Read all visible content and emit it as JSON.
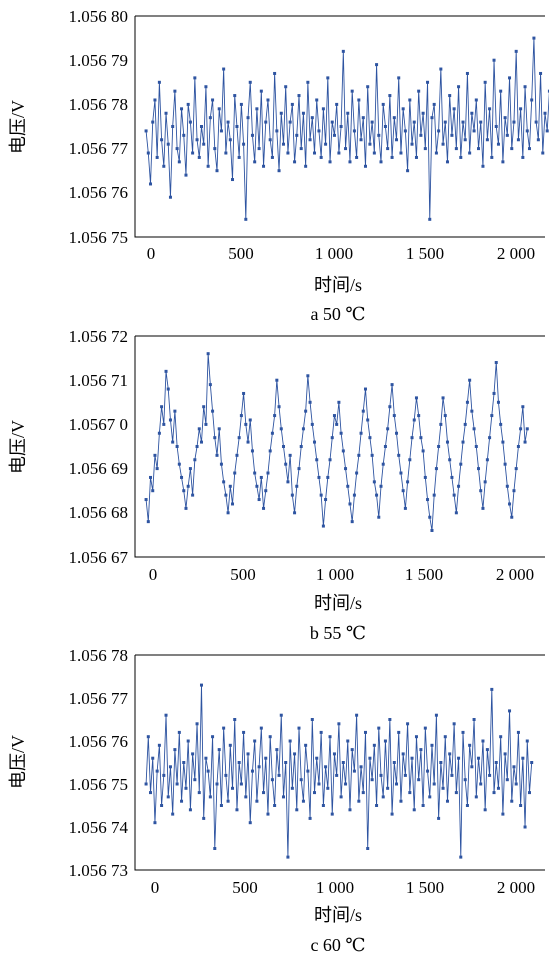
{
  "chart_data": [
    {
      "type": "line",
      "ylabel": "电压/V",
      "xlabel": "时间/s",
      "caption": "a 50 ℃",
      "xlim": [
        -60,
        2160
      ],
      "xticks": [
        0,
        500,
        1000,
        1500,
        2000
      ],
      "xtick_labels": [
        "0",
        "500",
        "1 000",
        "1 500",
        "2 000"
      ],
      "ylim": [
        1.05675,
        1.0568
      ],
      "yticks": [
        1.05675,
        1.05676,
        1.05677,
        1.05678,
        1.05679,
        1.0568
      ],
      "ytick_labels": [
        "1.056 75",
        "1.056 76",
        "1.056 77",
        "1.056 78",
        "1.056 79",
        "1.056 80"
      ],
      "series": [
        {
          "color": "#2e54a1",
          "x_start": 0,
          "x_step": 12,
          "y_range": [
            1.056765,
            1.056789
          ],
          "y_min": 1.056754,
          "y_max": 1.056795,
          "y": [
            1.056774,
            1.056769,
            1.056762,
            1.056776,
            1.056781,
            1.056768,
            1.056785,
            1.056772,
            1.056766,
            1.056778,
            1.056771,
            1.056759,
            1.056775,
            1.056783,
            1.05677,
            1.056767,
            1.056779,
            1.056773,
            1.056764,
            1.05678,
            1.056776,
            1.056769,
            1.056786,
            1.056772,
            1.056768,
            1.056775,
            1.056771,
            1.056784,
            1.056766,
            1.056777,
            1.056781,
            1.05677,
            1.056765,
            1.056779,
            1.056774,
            1.056788,
            1.056769,
            1.056776,
            1.056772,
            1.056763,
            1.056782,
            1.056775,
            1.056768,
            1.05678,
            1.056771,
            1.056754,
            1.056777,
            1.056785,
            1.056773,
            1.056767,
            1.056779,
            1.05677,
            1.056783,
            1.056766,
            1.056776,
            1.056781,
            1.056772,
            1.056768,
            1.056787,
            1.056774,
            1.056765,
            1.056778,
            1.056771,
            1.056784,
            1.056769,
            1.056776,
            1.05678,
            1.056767,
            1.056773,
            1.056782,
            1.05677,
            1.056778,
            1.056766,
            1.056785,
            1.056772,
            1.056777,
            1.056769,
            1.056781,
            1.056774,
            1.056768,
            1.056779,
            1.056771,
            1.056786,
            1.056767,
            1.056776,
            1.056773,
            1.05678,
            1.056769,
            1.056775,
            1.056792,
            1.05677,
            1.056778,
            1.056767,
            1.056783,
            1.056774,
            1.056768,
            1.056781,
            1.056772,
            1.056777,
            1.056766,
            1.056784,
            1.056771,
            1.056776,
            1.056769,
            1.056789,
            1.056773,
            1.056767,
            1.05678,
            1.056775,
            1.05677,
            1.056782,
            1.056768,
            1.056777,
            1.056772,
            1.056786,
            1.056769,
            1.056779,
            1.056774,
            1.056765,
            1.056781,
            1.056771,
            1.056776,
            1.056768,
            1.056783,
            1.056773,
            1.056778,
            1.05677,
            1.056785,
            1.056754,
            1.056777,
            1.05678,
            1.056769,
            1.056774,
            1.056788,
            1.056771,
            1.056776,
            1.056767,
            1.056782,
            1.056773,
            1.056779,
            1.05677,
            1.056784,
            1.056768,
            1.056776,
            1.056772,
            1.056787,
            1.056769,
            1.056778,
            1.056774,
            1.056781,
            1.05677,
            1.056776,
            1.056766,
            1.056785,
            1.056772,
            1.056779,
            1.056768,
            1.05679,
            1.056775,
            1.056771,
            1.056783,
            1.056767,
            1.056777,
            1.056773,
            1.056786,
            1.05677,
            1.056776,
            1.056792,
            1.056772,
            1.056779,
            1.056768,
            1.056784,
            1.056774,
            1.05677,
            1.056781,
            1.056795,
            1.056776,
            1.056772,
            1.056787,
            1.056769,
            1.056778,
            1.056774,
            1.056783
          ]
        }
      ]
    },
    {
      "type": "line",
      "ylabel": "电压/V",
      "xlabel": "时间/s",
      "caption": "b 55 ℃",
      "xlim": [
        -60,
        2160
      ],
      "xticks": [
        0,
        500,
        1000,
        1500,
        2000
      ],
      "xtick_labels": [
        "0",
        "500",
        "1 000",
        "1 500",
        "2 000"
      ],
      "ylim": [
        1.05667,
        1.05672
      ],
      "yticks": [
        1.05667,
        1.05668,
        1.05669,
        1.0567,
        1.05671,
        1.05672
      ],
      "ytick_labels": [
        "1.056 67",
        "1.056 68",
        "1.056 69",
        "1.0567 0",
        "1.056 71",
        "1.056 72"
      ],
      "series": [
        {
          "color": "#2e54a1",
          "x_start": 0,
          "x_step": 12,
          "y_range": [
            1.056679,
            1.056707
          ],
          "y_min": 1.056676,
          "y_max": 1.056716,
          "y": [
            1.056683,
            1.056678,
            1.056688,
            1.056685,
            1.056693,
            1.05669,
            1.056698,
            1.056704,
            1.0567,
            1.056712,
            1.056708,
            1.056701,
            1.056696,
            1.056703,
            1.056695,
            1.056691,
            1.056688,
            1.056685,
            1.056681,
            1.056686,
            1.05669,
            1.056684,
            1.056692,
            1.056695,
            1.056699,
            1.056696,
            1.056704,
            1.0567,
            1.056716,
            1.056709,
            1.056703,
            1.056697,
            1.056693,
            1.056699,
            1.056691,
            1.056687,
            1.056684,
            1.05668,
            1.056686,
            1.056682,
            1.056689,
            1.056693,
            1.056697,
            1.056702,
            1.056707,
            1.0567,
            1.056696,
            1.056701,
            1.056694,
            1.056689,
            1.056686,
            1.056683,
            1.056688,
            1.056681,
            1.056685,
            1.056689,
            1.056694,
            1.056698,
            1.056702,
            1.05671,
            1.056704,
            1.056699,
            1.056695,
            1.056691,
            1.056687,
            1.056693,
            1.056684,
            1.05668,
            1.056686,
            1.05669,
            1.056695,
            1.056699,
            1.056703,
            1.056711,
            1.056705,
            1.0567,
            1.056696,
            1.056692,
            1.056688,
            1.056684,
            1.056677,
            1.056683,
            1.056688,
            1.056692,
            1.056697,
            1.056702,
            1.0567,
            1.056705,
            1.056698,
            1.056694,
            1.05669,
            1.056686,
            1.056682,
            1.056678,
            1.056684,
            1.056689,
            1.056693,
            1.056698,
            1.056703,
            1.056708,
            1.056701,
            1.056697,
            1.056693,
            1.056687,
            1.056684,
            1.056679,
            1.056686,
            1.056691,
            1.056695,
            1.056699,
            1.056704,
            1.056709,
            1.056702,
            1.056698,
            1.056693,
            1.056689,
            1.056685,
            1.056681,
            1.056687,
            1.056692,
            1.056697,
            1.056701,
            1.056706,
            1.056702,
            1.056697,
            1.056694,
            1.056688,
            1.056683,
            1.056679,
            1.056676,
            1.056684,
            1.05669,
            1.056695,
            1.0567,
            1.056706,
            1.056702,
            1.056696,
            1.056692,
            1.056688,
            1.056684,
            1.05668,
            1.056686,
            1.056691,
            1.056696,
            1.0567,
            1.056705,
            1.05671,
            1.056703,
            1.056699,
            1.056695,
            1.05669,
            1.056685,
            1.056681,
            1.056687,
            1.056692,
            1.056697,
            1.056702,
            1.056707,
            1.056714,
            1.056705,
            1.0567,
            1.056696,
            1.056691,
            1.056686,
            1.056682,
            1.056679,
            1.056685,
            1.05669,
            1.056695,
            1.056699,
            1.056704,
            1.056696,
            1.056699
          ]
        }
      ]
    },
    {
      "type": "line",
      "ylabel": "电压/V",
      "xlabel": "时间/s",
      "caption": "c 60 ℃",
      "xlim": [
        -60,
        2160
      ],
      "xticks": [
        0,
        500,
        1000,
        1500,
        2000
      ],
      "xtick_labels": [
        "0",
        "500",
        "1 000",
        "1 500",
        "2 000"
      ],
      "ylim": [
        1.05673,
        1.05678
      ],
      "yticks": [
        1.05673,
        1.05674,
        1.05675,
        1.05676,
        1.05677,
        1.05678
      ],
      "ytick_labels": [
        "1.056 73",
        "1.056 74",
        "1.056 75",
        "1.056 76",
        "1.056 77",
        "1.056 78"
      ],
      "series": [
        {
          "color": "#2e54a1",
          "x_start": 0,
          "x_step": 12,
          "y_range": [
            1.056742,
            1.056763
          ],
          "y_min": 1.056733,
          "y_max": 1.056773,
          "y": [
            1.05675,
            1.056761,
            1.056748,
            1.056756,
            1.056741,
            1.056753,
            1.056759,
            1.056745,
            1.056752,
            1.056766,
            1.056747,
            1.056754,
            1.056743,
            1.056758,
            1.05675,
            1.056762,
            1.056746,
            1.056755,
            1.056749,
            1.05676,
            1.056744,
            1.056757,
            1.056751,
            1.056764,
            1.056748,
            1.056773,
            1.056742,
            1.056756,
            1.056753,
            1.056747,
            1.056761,
            1.056735,
            1.05675,
            1.056758,
            1.056745,
            1.056763,
            1.056752,
            1.056746,
            1.056759,
            1.056749,
            1.056765,
            1.056744,
            1.056755,
            1.05675,
            1.056762,
            1.056747,
            1.056757,
            1.056741,
            1.056753,
            1.05676,
            1.056746,
            1.056754,
            1.056763,
            1.056748,
            1.056756,
            1.056743,
            1.056761,
            1.056751,
            1.056745,
            1.056758,
            1.056752,
            1.056766,
            1.056747,
            1.056755,
            1.056733,
            1.05676,
            1.056749,
            1.056757,
            1.056744,
            1.056763,
            1.056751,
            1.056746,
            1.056759,
            1.056753,
            1.056742,
            1.056765,
            1.056748,
            1.056756,
            1.05675,
            1.056762,
            1.056745,
            1.056754,
            1.056749,
            1.056761,
            1.056743,
            1.056757,
            1.056752,
            1.056764,
            1.056747,
            1.056755,
            1.05675,
            1.05676,
            1.056744,
            1.056758,
            1.056753,
            1.056766,
            1.056746,
            1.056754,
            1.056748,
            1.056762,
            1.056735,
            1.056756,
            1.056751,
            1.056759,
            1.056745,
            1.056763,
            1.056752,
            1.056747,
            1.05676,
            1.056749,
            1.056765,
            1.056743,
            1.056755,
            1.05675,
            1.056762,
            1.056746,
            1.056757,
            1.056752,
            1.056764,
            1.056748,
            1.056756,
            1.056744,
            1.056761,
            1.056751,
            1.056758,
            1.056745,
            1.056763,
            1.056753,
            1.056747,
            1.056759,
            1.05675,
            1.056766,
            1.056742,
            1.056755,
            1.056749,
            1.056761,
            1.056746,
            1.056757,
            1.056752,
            1.056764,
            1.056748,
            1.056756,
            1.056733,
            1.056762,
            1.056751,
            1.056745,
            1.056759,
            1.056754,
            1.056765,
            1.056747,
            1.056756,
            1.05675,
            1.05676,
            1.056744,
            1.056758,
            1.056752,
            1.056772,
            1.056748,
            1.056755,
            1.056749,
            1.056761,
            1.056743,
            1.056757,
            1.056751,
            1.056767,
            1.056746,
            1.056754,
            1.05675,
            1.056762,
            1.056745,
            1.056756,
            1.05674,
            1.05676,
            1.056748,
            1.056755
          ]
        }
      ]
    }
  ]
}
